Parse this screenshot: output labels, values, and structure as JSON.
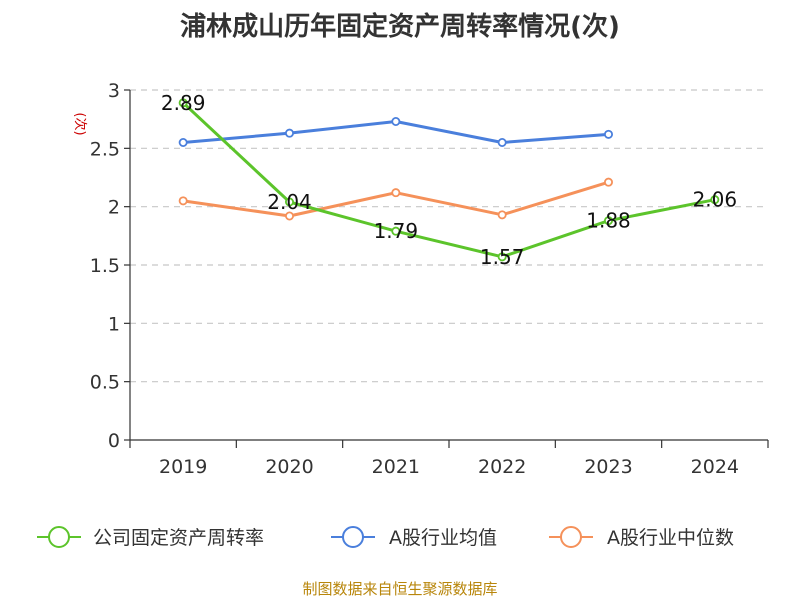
{
  "chart_data": {
    "type": "line",
    "title": "浦林成山历年固定资产周转率情况(次)",
    "ylabel": "(次)",
    "categories": [
      "2019",
      "2020",
      "2021",
      "2022",
      "2023",
      "2024"
    ],
    "ylim": [
      0,
      3
    ],
    "yticks": [
      "0",
      "0.5",
      "1",
      "1.5",
      "2",
      "2.5",
      "3"
    ],
    "grid": true,
    "legend_position": "bottom",
    "series": [
      {
        "name": "公司固定资产周转率",
        "color": "#5cc42b",
        "values": [
          2.89,
          2.04,
          1.79,
          1.57,
          1.88,
          2.06
        ],
        "labels": [
          "2.89",
          "2.04",
          "1.79",
          "1.57",
          "1.88",
          "2.06"
        ]
      },
      {
        "name": "A股行业均值",
        "color": "#4a7fdc",
        "values": [
          2.55,
          2.63,
          2.73,
          2.55,
          2.62,
          null
        ]
      },
      {
        "name": "A股行业中位数",
        "color": "#f5915a",
        "values": [
          2.05,
          1.92,
          2.12,
          1.93,
          2.21,
          null
        ]
      }
    ]
  },
  "source": "制图数据来自恒生聚源数据库"
}
